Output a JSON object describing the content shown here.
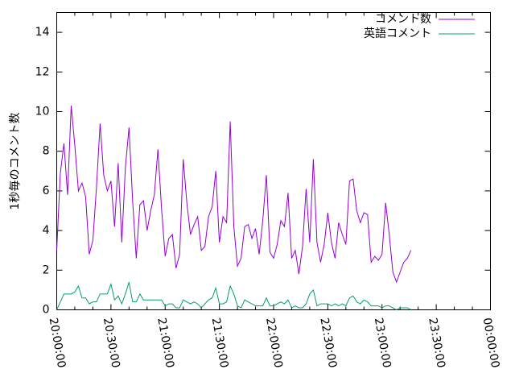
{
  "chart_data": {
    "type": "line",
    "title": "",
    "xlabel": "",
    "ylabel": "1秒毎のコメント数",
    "x_ticks": [
      "20:00:00",
      "20:30:00",
      "21:00:00",
      "21:30:00",
      "22:00:00",
      "22:30:00",
      "23:00:00",
      "23:30:00",
      "00:00:00"
    ],
    "xlim_minutes": [
      0,
      240
    ],
    "x_step_minutes": 2,
    "y_ticks": [
      0,
      2,
      4,
      6,
      8,
      10,
      12,
      14
    ],
    "ylim": [
      0,
      15
    ],
    "grid": false,
    "legend": "top-right",
    "series": [
      {
        "name": "コメント数",
        "color": "#9400d3",
        "values": [
          3.0,
          6.9,
          8.4,
          5.8,
          10.3,
          8.3,
          6.0,
          6.4,
          5.7,
          2.8,
          3.5,
          6.2,
          9.4,
          6.8,
          6.0,
          6.5,
          4.2,
          7.4,
          3.4,
          7.2,
          9.2,
          5.5,
          2.6,
          5.3,
          5.5,
          4.0,
          5.0,
          5.8,
          8.1,
          5.1,
          2.7,
          3.6,
          3.8,
          2.1,
          2.8,
          7.6,
          5.4,
          3.8,
          4.3,
          4.7,
          3.0,
          3.2,
          4.7,
          5.2,
          7.0,
          3.4,
          4.7,
          4.4,
          9.5,
          4.2,
          2.2,
          2.6,
          4.2,
          4.3,
          3.6,
          4.1,
          2.8,
          4.5,
          6.8,
          2.9,
          2.6,
          3.3,
          4.5,
          4.2,
          5.9,
          2.6,
          3.0,
          1.8,
          3.2,
          6.1,
          3.4,
          7.6,
          3.4,
          2.4,
          3.3,
          4.9,
          3.4,
          2.6,
          4.4,
          3.8,
          3.3,
          6.5,
          6.6,
          5.0,
          4.4,
          4.9,
          4.8,
          2.4,
          2.7,
          2.5,
          2.8,
          5.4,
          3.8,
          1.9,
          1.4,
          1.9,
          2.4,
          2.6,
          3.0
        ]
      },
      {
        "name": "英語コメント",
        "color": "#009e73",
        "values": [
          0.0,
          0.4,
          0.8,
          0.8,
          0.8,
          0.9,
          1.2,
          0.6,
          0.6,
          0.3,
          0.4,
          0.4,
          0.8,
          0.8,
          0.8,
          1.3,
          0.5,
          0.7,
          0.3,
          0.8,
          1.4,
          0.4,
          0.4,
          0.8,
          0.5,
          0.5,
          0.5,
          0.5,
          0.5,
          0.5,
          0.2,
          0.3,
          0.3,
          0.1,
          0.1,
          0.5,
          0.4,
          0.3,
          0.4,
          0.3,
          0.1,
          0.3,
          0.5,
          0.6,
          1.1,
          0.3,
          0.3,
          0.4,
          1.2,
          0.8,
          0.2,
          0.1,
          0.5,
          0.4,
          0.3,
          0.2,
          0.2,
          0.2,
          0.6,
          0.2,
          0.2,
          0.3,
          0.4,
          0.3,
          0.5,
          0.1,
          0.2,
          0.1,
          0.1,
          0.3,
          0.8,
          1.0,
          0.2,
          0.3,
          0.3,
          0.3,
          0.2,
          0.3,
          0.2,
          0.3,
          0.2,
          0.6,
          0.7,
          0.4,
          0.3,
          0.5,
          0.4,
          0.2,
          0.2,
          0.2,
          0.1,
          0.2,
          0.2,
          0.1,
          0.0,
          0.1,
          0.1,
          0.1,
          0.0
        ]
      }
    ]
  }
}
